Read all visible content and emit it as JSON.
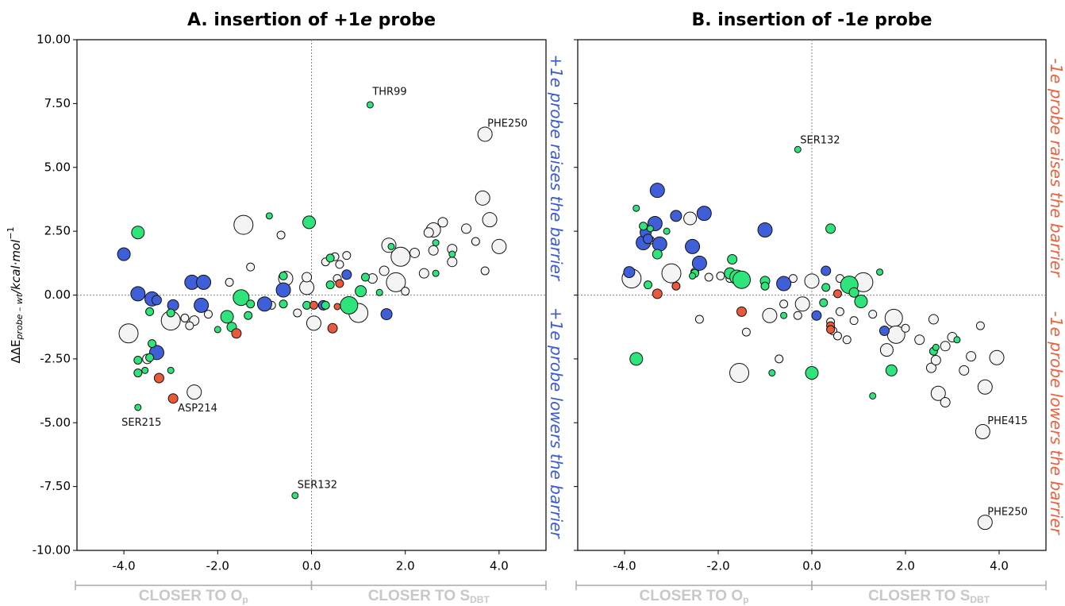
{
  "chart_data": [
    {
      "type": "scatter",
      "title": {
        "pre": "A. insertion of +1",
        "em": "e",
        "post": " probe"
      },
      "ylabel": {
        "main": "ΔΔE",
        "sub": "probe – wt",
        "unit": "/kcal·mol",
        "sup": "−1"
      },
      "xlim": [
        -5,
        5
      ],
      "ylim": [
        -10,
        10
      ],
      "xticks": [
        {
          "value": -4,
          "label": "-4.0"
        },
        {
          "value": -2,
          "label": "-2.0"
        },
        {
          "value": 0,
          "label": "0.0"
        },
        {
          "value": 2,
          "label": "2.0"
        },
        {
          "value": 4,
          "label": "4.0"
        }
      ],
      "yticks": [
        {
          "value": 10,
          "label": "10.00"
        },
        {
          "value": 7.5,
          "label": "7.50"
        },
        {
          "value": 5,
          "label": "5.00"
        },
        {
          "value": 2.5,
          "label": "2.50"
        },
        {
          "value": 0,
          "label": "0.00"
        },
        {
          "value": -2.5,
          "label": "-2.50"
        },
        {
          "value": -5,
          "label": "-5.00"
        },
        {
          "value": -7.5,
          "label": "-7.50"
        },
        {
          "value": -10,
          "label": "-10.00"
        }
      ],
      "hline": 0,
      "vline": 0,
      "series": [
        {
          "color": "#f4f4f4",
          "x": [
            3.7,
            3.65,
            3.8,
            4.0,
            3.5,
            3.7,
            3.3,
            3.0,
            3.0,
            2.8,
            2.6,
            2.5,
            2.6,
            2.4,
            2.2,
            1.9,
            1.8,
            1.65,
            2.0,
            1.55,
            1.3,
            1.0,
            0.75,
            0.6,
            0.55,
            0.5,
            0.3,
            0.05,
            -0.1,
            -0.1,
            -0.3,
            -0.55,
            -0.65,
            -0.85,
            -1.3,
            -1.45,
            -1.75,
            -2.2,
            -2.5,
            -2.6,
            -2.7,
            -2.5,
            -3.9,
            -3.0,
            -2.5,
            -3.5
          ],
          "values": [
            6.3,
            3.8,
            2.95,
            1.9,
            2.1,
            0.95,
            2.6,
            1.8,
            1.3,
            2.85,
            2.55,
            2.45,
            1.75,
            0.85,
            1.65,
            1.5,
            0.5,
            1.95,
            0.15,
            0.95,
            0.65,
            -0.7,
            1.55,
            1.2,
            0.65,
            1.5,
            1.3,
            -1.1,
            0.3,
            0.7,
            -0.7,
            0.65,
            2.35,
            -0.4,
            1.1,
            2.75,
            0.5,
            -0.75,
            -1.0,
            -1.2,
            -0.9,
            -3.8,
            -1.5,
            -1.0,
            0.5,
            -2.5
          ],
          "sizes": [
            9,
            9,
            9,
            9,
            5,
            5,
            6,
            6,
            6,
            6,
            9,
            6,
            6,
            6,
            6,
            12,
            12,
            9,
            5,
            6,
            6,
            12,
            5,
            5,
            5,
            5,
            5,
            9,
            9,
            6,
            5,
            9,
            5,
            5,
            5,
            12,
            5,
            5,
            6,
            5,
            5,
            9,
            12,
            12,
            6,
            6
          ]
        },
        {
          "color": "#3f5fd8",
          "x": [
            -4.0,
            -3.7,
            -3.4,
            -3.3,
            -3.3,
            -2.95,
            -2.55,
            -2.3,
            -2.35,
            -1.0,
            -0.6,
            0.25,
            0.75,
            1.6
          ],
          "values": [
            1.6,
            0.05,
            -0.15,
            -2.25,
            -0.2,
            -0.4,
            0.5,
            0.5,
            -0.4,
            -0.35,
            0.2,
            -0.4,
            0.8,
            -0.75
          ],
          "sizes": [
            8,
            9,
            9,
            9,
            6,
            7,
            9,
            9,
            9,
            9,
            9,
            6,
            6,
            7
          ]
        },
        {
          "color": "#2ee57c",
          "x": [
            -3.7,
            -3.45,
            -3.7,
            -3.7,
            -3.55,
            -3.4,
            -3.45,
            -3.0,
            -3.0,
            -2.0,
            -1.8,
            -1.7,
            -1.5,
            -1.3,
            -0.9,
            -0.6,
            -0.6,
            -0.05,
            -0.1,
            0.3,
            0.4,
            0.4,
            0.8,
            1.05,
            1.15,
            1.25,
            1.45,
            1.7,
            2.65,
            2.65,
            -3.7,
            -1.35,
            3.0,
            -0.35
          ],
          "values": [
            2.45,
            -0.65,
            -2.55,
            -3.05,
            -2.95,
            -1.9,
            -2.45,
            -2.95,
            -0.7,
            -1.35,
            -0.85,
            -1.25,
            -0.1,
            -0.35,
            3.1,
            -0.35,
            0.75,
            2.85,
            -0.4,
            -0.4,
            1.45,
            0.4,
            -0.4,
            0.15,
            0.7,
            7.45,
            0.1,
            1.9,
            2.05,
            0.85,
            -4.4,
            -0.8,
            1.6,
            -7.85
          ],
          "sizes": [
            8,
            5,
            5,
            5,
            4,
            5,
            5,
            4,
            5,
            4,
            8,
            6,
            10,
            5,
            4,
            5,
            5,
            8,
            5,
            5,
            5,
            5,
            11,
            7,
            5,
            4,
            4,
            4,
            4,
            4,
            4,
            5,
            4,
            4
          ]
        },
        {
          "color": "#ea5a3a",
          "x": [
            -3.25,
            -2.95,
            -1.6,
            0.45,
            0.6,
            0.05,
            0.55
          ],
          "values": [
            -3.25,
            -4.05,
            -1.5,
            -1.3,
            0.45,
            -0.4,
            -0.45
          ],
          "sizes": [
            6,
            6,
            6,
            6,
            5,
            5,
            4
          ]
        }
      ],
      "annotations": [
        {
          "text": "THR99",
          "x": 1.3,
          "y": 7.95
        },
        {
          "text": "PHE250",
          "x": 3.75,
          "y": 6.7
        },
        {
          "text": "ASP214",
          "x": -2.85,
          "y": -4.45
        },
        {
          "text": "SER215",
          "x": -4.05,
          "y": -5.0
        },
        {
          "text": "SER132",
          "x": -0.3,
          "y": -7.45
        }
      ],
      "side_color": "#3a5bd9",
      "side_labels": [
        {
          "pre": "+1",
          "em": "e",
          "post": " probe raises the barrier"
        },
        {
          "pre": "+1",
          "em": "e",
          "post": " probe lowers the barrier"
        }
      ],
      "regions": [
        {
          "text": "CLOSER TO O",
          "sub": "p"
        },
        {
          "text": "CLOSER TO S",
          "sub": "DBT"
        }
      ]
    },
    {
      "type": "scatter",
      "title": {
        "pre": "B. insertion of -1",
        "em": "e",
        "post": " probe"
      },
      "xlim": [
        -5,
        5
      ],
      "ylim": [
        -10,
        10
      ],
      "xticks": [
        {
          "value": -4,
          "label": "-4.0"
        },
        {
          "value": -2,
          "label": "-2.0"
        },
        {
          "value": 0,
          "label": "0.0"
        },
        {
          "value": 2,
          "label": "2.0"
        },
        {
          "value": 4,
          "label": "4.0"
        }
      ],
      "yticks": [
        10,
        7.5,
        5,
        2.5,
        0,
        -2.5,
        -5,
        -7.5,
        -10
      ],
      "hline": 0,
      "vline": 0,
      "series": [
        {
          "color": "#f4f4f4",
          "x": [
            -3.85,
            -3.0,
            -2.6,
            -2.5,
            -2.4,
            -2.2,
            -1.95,
            -1.75,
            -1.4,
            -1.55,
            -0.9,
            -0.7,
            -0.6,
            -0.4,
            -0.3,
            -0.2,
            0.0,
            0.4,
            0.45,
            0.55,
            0.6,
            0.6,
            0.75,
            0.9,
            1.1,
            1.3,
            1.6,
            1.75,
            1.8,
            2.0,
            2.3,
            2.6,
            2.55,
            2.65,
            2.7,
            2.85,
            2.85,
            3.0,
            3.25,
            3.4,
            3.6,
            3.7,
            3.95,
            3.65,
            3.7,
            -3.45
          ],
          "values": [
            0.65,
            0.85,
            3.0,
            0.9,
            -0.95,
            0.7,
            0.75,
            0.65,
            -1.45,
            -3.05,
            -0.8,
            -2.5,
            -0.35,
            0.65,
            -0.8,
            -0.35,
            0.55,
            -1.05,
            -1.4,
            -1.6,
            -0.65,
            0.65,
            -1.75,
            -1.0,
            0.5,
            -0.75,
            -2.15,
            -0.9,
            -1.55,
            -1.3,
            -1.75,
            -0.95,
            -2.85,
            -2.55,
            -3.85,
            -2.0,
            -4.2,
            -1.65,
            -2.95,
            -2.4,
            -1.2,
            -3.6,
            -2.45,
            -5.35,
            -8.9,
            2.15
          ],
          "sizes": [
            12,
            12,
            8,
            5,
            5,
            5,
            5,
            5,
            5,
            12,
            9,
            5,
            5,
            5,
            5,
            9,
            9,
            5,
            5,
            5,
            5,
            5,
            5,
            5,
            12,
            5,
            8,
            11,
            11,
            5,
            6,
            6,
            6,
            6,
            9,
            6,
            6,
            6,
            6,
            6,
            5,
            9,
            9,
            9,
            9,
            5
          ]
        },
        {
          "color": "#3f5fd8",
          "x": [
            -3.3,
            -3.35,
            -3.25,
            -3.6,
            -3.55,
            -2.9,
            -2.3,
            -2.55,
            -2.4,
            -3.9,
            -1.0,
            -0.6,
            0.3,
            0.1,
            1.55,
            -3.5
          ],
          "values": [
            4.1,
            2.8,
            2.0,
            2.05,
            2.45,
            3.1,
            3.2,
            1.9,
            1.25,
            0.9,
            2.55,
            0.45,
            0.95,
            -0.8,
            -1.4,
            2.2
          ],
          "sizes": [
            9,
            9,
            9,
            9,
            7,
            7,
            9,
            9,
            9,
            7,
            9,
            9,
            6,
            6,
            6,
            6
          ]
        },
        {
          "color": "#2ee57c",
          "x": [
            -3.75,
            -3.6,
            -3.45,
            -3.3,
            -3.5,
            -3.1,
            -2.5,
            -1.7,
            -1.75,
            -1.6,
            -1.5,
            -1.0,
            -1.0,
            -0.6,
            -0.85,
            -0.3,
            0.3,
            0.25,
            0.4,
            0.8,
            0.9,
            1.05,
            1.3,
            1.45,
            1.7,
            -3.75,
            0.0,
            2.6,
            2.65,
            3.1,
            -2.55
          ],
          "values": [
            3.4,
            2.7,
            2.6,
            1.6,
            0.4,
            2.5,
            0.85,
            1.4,
            0.85,
            0.7,
            0.6,
            0.55,
            0.35,
            -0.8,
            -3.05,
            5.7,
            0.3,
            -0.3,
            2.6,
            0.4,
            0.1,
            -0.25,
            -3.95,
            0.9,
            -2.95,
            -2.5,
            -3.05,
            -2.2,
            -2.05,
            -1.75,
            0.75
          ],
          "sizes": [
            4,
            5,
            4,
            6,
            5,
            4,
            5,
            6,
            7,
            9,
            11,
            6,
            5,
            4,
            4,
            4,
            5,
            5,
            6,
            11,
            6,
            8,
            4,
            4,
            7,
            8,
            8,
            5,
            4,
            4,
            4
          ]
        },
        {
          "color": "#ea5a3a",
          "x": [
            -3.3,
            -2.9,
            -1.5,
            0.4,
            0.4,
            0.55
          ],
          "values": [
            0.05,
            0.35,
            -0.65,
            -1.2,
            -1.35,
            0.05
          ],
          "sizes": [
            6,
            5,
            6,
            5,
            5,
            5
          ]
        }
      ],
      "annotations": [
        {
          "text": "SER132",
          "x": -0.25,
          "y": 6.05
        },
        {
          "text": "PHE415",
          "x": 3.75,
          "y": -4.95
        },
        {
          "text": "PHE250",
          "x": 3.75,
          "y": -8.5
        }
      ],
      "side_color": "#f0603c",
      "side_labels": [
        {
          "pre": "-1",
          "em": "e",
          "post": " probe raises the barrier"
        },
        {
          "pre": "-1",
          "em": "e",
          "post": " probe lowers the barrier"
        }
      ],
      "regions": [
        {
          "text": "CLOSER TO O",
          "sub": "p"
        },
        {
          "text": "CLOSER TO S",
          "sub": "DBT"
        }
      ]
    }
  ]
}
